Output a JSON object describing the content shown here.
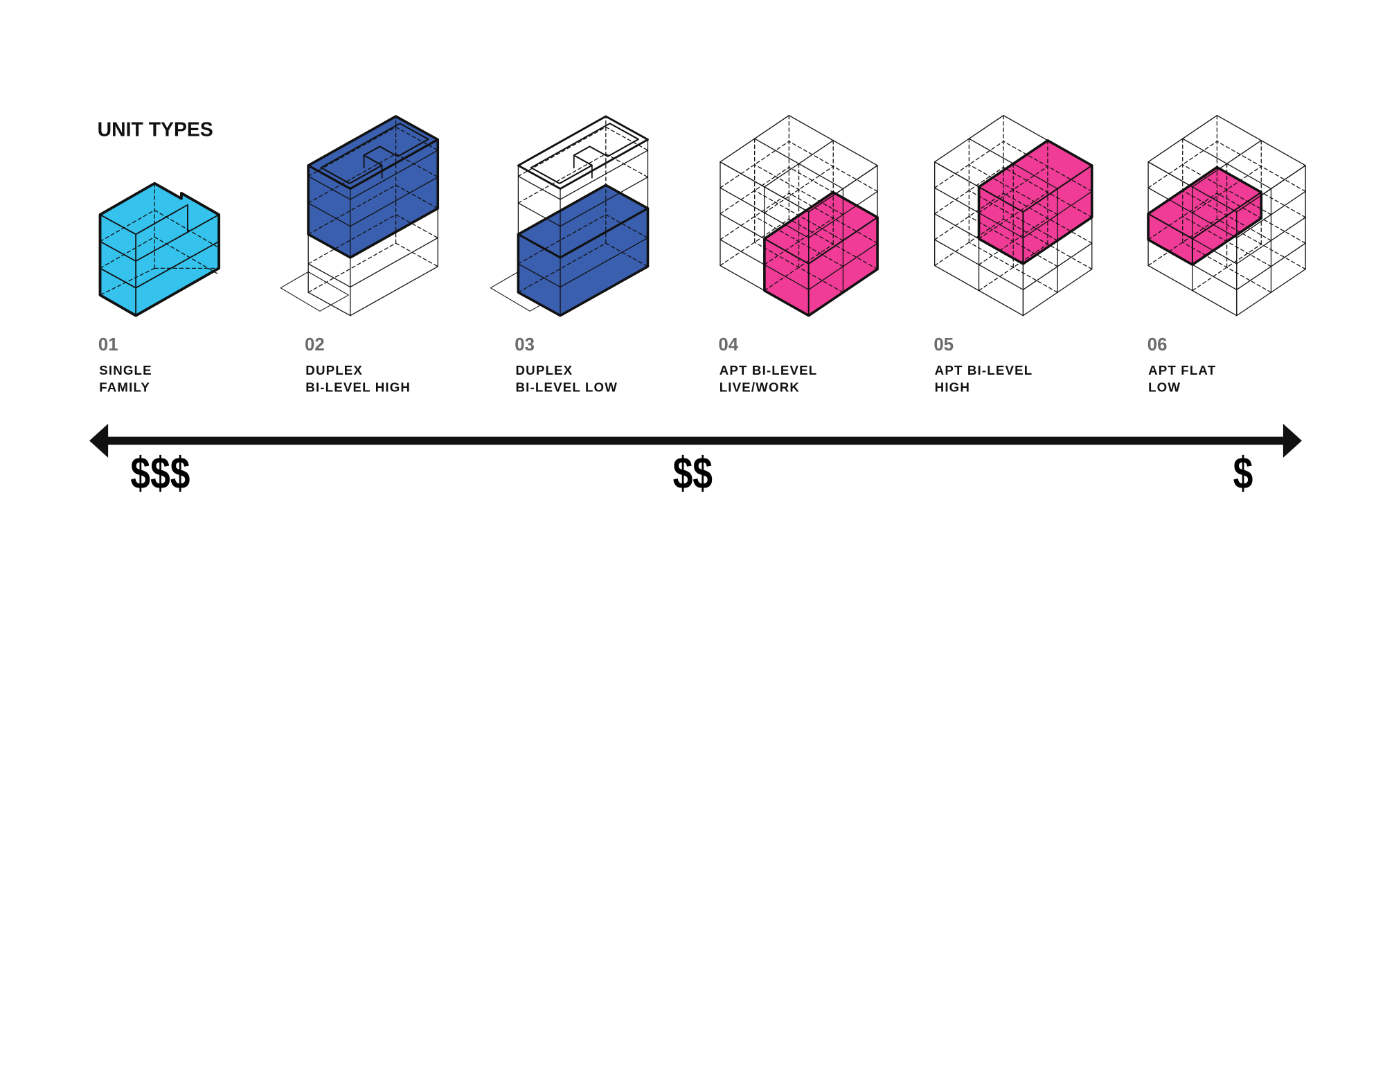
{
  "title": "UNIT TYPES",
  "colors": {
    "single_family": "#35c3ee",
    "duplex": "#3a5fae",
    "apartment": "#f03c96",
    "line": "#111111",
    "number_text": "#6b6b6b"
  },
  "units": [
    {
      "number": "01",
      "line1": "SINGLE",
      "line2": "FAMILY",
      "color": "#35c3ee"
    },
    {
      "number": "02",
      "line1": "DUPLEX",
      "line2": "BI-LEVEL HIGH",
      "color": "#3a5fae"
    },
    {
      "number": "03",
      "line1": "DUPLEX",
      "line2": "BI-LEVEL LOW",
      "color": "#3a5fae"
    },
    {
      "number": "04",
      "line1": "APT BI-LEVEL",
      "line2": "LIVE/WORK",
      "color": "#f03c96"
    },
    {
      "number": "05",
      "line1": "APT BI-LEVEL",
      "line2": "HIGH",
      "color": "#f03c96"
    },
    {
      "number": "06",
      "line1": "APT FLAT",
      "line2": "LOW",
      "color": "#f03c96"
    }
  ],
  "cost_scale": {
    "high": "$$$",
    "mid": "$$",
    "low": "$",
    "arrow": "double-headed-arrow"
  }
}
